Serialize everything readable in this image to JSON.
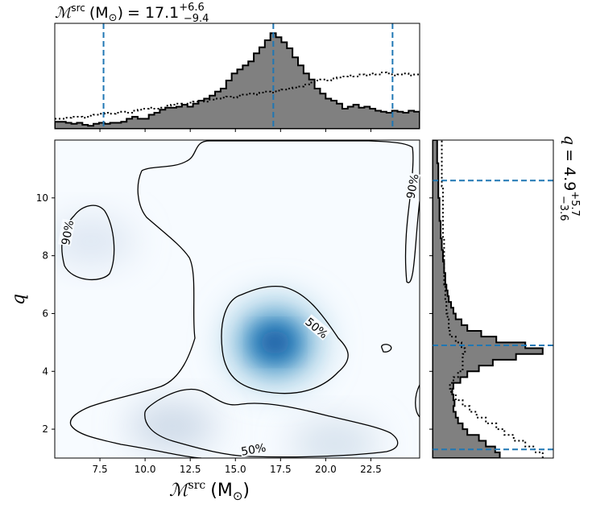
{
  "chart_data": {
    "type": "corner-posterior",
    "panels": {
      "top": {
        "type": "histogram",
        "x_range": [
          5.0,
          25.2
        ],
        "title": {
          "prefix": "ℳ",
          "sup": "src",
          "unit": "(M",
          "unit_sub": "⊙",
          "unit_close": ")",
          "value": "= 17.1",
          "upper": "+6.6",
          "lower": "−9.4"
        },
        "median": 17.1,
        "lower_bound": 7.7,
        "upper_bound": 23.7,
        "filled_density": [
          0.07,
          0.07,
          0.06,
          0.05,
          0.06,
          0.04,
          0.03,
          0.05,
          0.06,
          0.05,
          0.06,
          0.06,
          0.07,
          0.1,
          0.12,
          0.1,
          0.1,
          0.14,
          0.16,
          0.19,
          0.21,
          0.21,
          0.22,
          0.24,
          0.22,
          0.25,
          0.28,
          0.3,
          0.33,
          0.37,
          0.4,
          0.48,
          0.55,
          0.59,
          0.63,
          0.67,
          0.75,
          0.81,
          0.88,
          0.95,
          0.91,
          0.86,
          0.8,
          0.71,
          0.63,
          0.55,
          0.49,
          0.4,
          0.35,
          0.3,
          0.28,
          0.25,
          0.2,
          0.22,
          0.24,
          0.21,
          0.22,
          0.2,
          0.18,
          0.17,
          0.16,
          0.18,
          0.17,
          0.16,
          0.18,
          0.17
        ],
        "prior_density": [
          0.1,
          0.1,
          0.11,
          0.12,
          0.12,
          0.11,
          0.13,
          0.14,
          0.15,
          0.16,
          0.15,
          0.16,
          0.17,
          0.16,
          0.18,
          0.19,
          0.2,
          0.21,
          0.2,
          0.21,
          0.23,
          0.24,
          0.25,
          0.24,
          0.26,
          0.27,
          0.28,
          0.27,
          0.29,
          0.3,
          0.31,
          0.32,
          0.31,
          0.33,
          0.34,
          0.35,
          0.34,
          0.36,
          0.37,
          0.36,
          0.38,
          0.39,
          0.4,
          0.41,
          0.42,
          0.44,
          0.46,
          0.48,
          0.49,
          0.48,
          0.5,
          0.51,
          0.52,
          0.53,
          0.52,
          0.54,
          0.53,
          0.55,
          0.54,
          0.56,
          0.55,
          0.53,
          0.54,
          0.55,
          0.53,
          0.54
        ]
      },
      "main": {
        "type": "density-contour",
        "x_range": [
          5.0,
          25.2
        ],
        "y_range": [
          1.0,
          12.0
        ],
        "xlabel": {
          "symbol": "ℳ",
          "sup": "src",
          "unit": "(M",
          "unit_sub": "⊙",
          "unit_close": ")"
        },
        "ylabel": "q",
        "xticks": [
          7.5,
          10.0,
          12.5,
          15.0,
          17.5,
          20.0,
          22.5
        ],
        "xtick_labels": [
          "7.5",
          "10.0",
          "12.5",
          "15.0",
          "17.5",
          "20.0",
          "22.5"
        ],
        "yticks": [
          2,
          4,
          6,
          8,
          10
        ],
        "ytick_labels": [
          "2",
          "4",
          "6",
          "8",
          "10"
        ],
        "contour_labels": [
          {
            "text": "90%",
            "x": 5.7,
            "y": 8.8,
            "rotation": -80
          },
          {
            "text": "90%",
            "x": 24.8,
            "y": 10.4,
            "rotation": -80
          },
          {
            "text": "50%",
            "x": 19.5,
            "y": 5.5,
            "rotation": 40
          },
          {
            "text": "50%",
            "x": 16.0,
            "y": 1.3,
            "rotation": -10
          }
        ],
        "density_peaks": [
          {
            "x": 17.2,
            "y": 5.0,
            "weight": 1.0
          },
          {
            "x": 11.5,
            "y": 2.1,
            "weight": 0.18
          },
          {
            "x": 20.5,
            "y": 1.5,
            "weight": 0.12
          },
          {
            "x": 7.0,
            "y": 8.5,
            "weight": 0.08
          }
        ],
        "colormap": "Blues"
      },
      "right": {
        "type": "histogram",
        "y_range": [
          1.0,
          12.0
        ],
        "title": {
          "symbol": "q",
          "value": "= 4.9",
          "upper": "+5.7",
          "lower": "−3.6"
        },
        "median": 4.9,
        "lower_bound": 1.3,
        "upper_bound": 10.6,
        "filled_density": [
          0.58,
          0.54,
          0.46,
          0.4,
          0.3,
          0.26,
          0.22,
          0.2,
          0.18,
          0.19,
          0.18,
          0.17,
          0.18,
          0.24,
          0.3,
          0.4,
          0.52,
          0.72,
          0.95,
          0.8,
          0.55,
          0.42,
          0.3,
          0.25,
          0.2,
          0.18,
          0.16,
          0.14,
          0.13,
          0.12,
          0.11,
          0.11,
          0.1,
          0.1,
          0.09,
          0.09,
          0.08,
          0.08,
          0.07,
          0.07,
          0.07,
          0.06,
          0.06,
          0.06,
          0.06,
          0.05,
          0.05,
          0.05,
          0.05,
          0.05,
          0.05,
          0.04,
          0.04,
          0.04,
          0.04
        ],
        "prior_density": [
          0.95,
          0.88,
          0.8,
          0.7,
          0.62,
          0.55,
          0.46,
          0.38,
          0.32,
          0.26,
          0.2,
          0.16,
          0.15,
          0.18,
          0.22,
          0.26,
          0.26,
          0.26,
          0.28,
          0.25,
          0.2,
          0.15,
          0.14,
          0.14,
          0.13,
          0.12,
          0.12,
          0.11,
          0.11,
          0.11,
          0.1,
          0.1,
          0.1,
          0.1,
          0.1,
          0.1,
          0.1,
          0.1,
          0.09,
          0.09,
          0.09,
          0.09,
          0.09,
          0.09,
          0.09,
          0.09,
          0.09,
          0.08,
          0.08,
          0.08,
          0.08,
          0.08,
          0.08,
          0.08,
          0.08
        ]
      }
    },
    "colors": {
      "hist_fill": "#808080",
      "quantile_line": "#1f77b4",
      "contour": "#000000",
      "cmap_low": "#f7fbff",
      "cmap_high": "#08306b"
    }
  }
}
